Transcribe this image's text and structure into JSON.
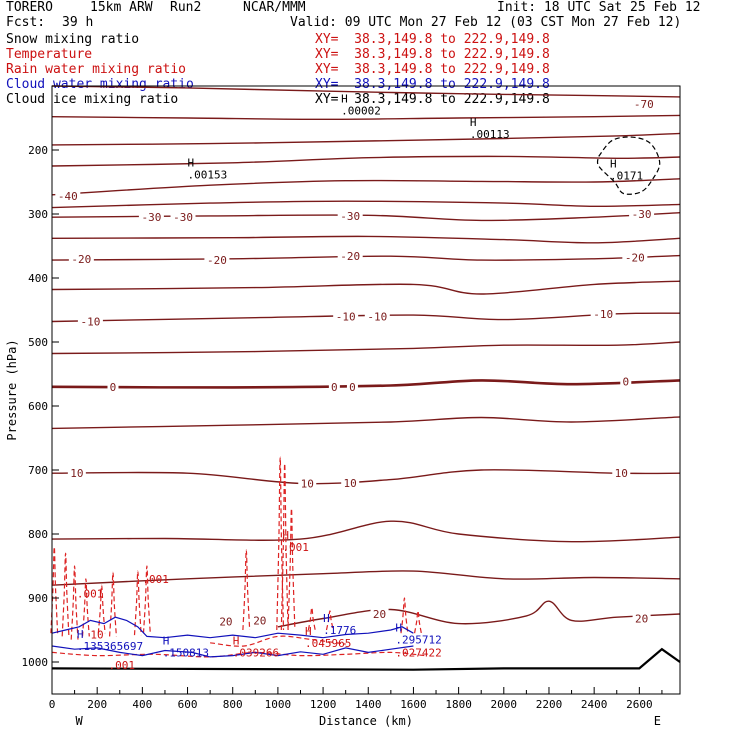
{
  "header": {
    "model": "TORERO",
    "resolution": "15km ARW",
    "run": "Run2",
    "center": "NCAR/MMM",
    "init": "Init: 18 UTC Sat 25 Feb 12",
    "fcst_label": "Fcst:",
    "fcst_value": "39 h",
    "valid": "Valid: 09 UTC Mon 27 Feb 12 (03 CST Mon 27 Feb 12)",
    "fields": [
      {
        "name": "Snow mixing ratio",
        "xy": "XY=  38.3,149.8 to 222.9,149.8",
        "color": "#000000"
      },
      {
        "name": "Temperature",
        "xy": "XY=  38.3,149.8 to 222.9,149.8",
        "color": "#cc1111"
      },
      {
        "name": "Rain water mixing ratio",
        "xy": "XY=  38.3,149.8 to 222.9,149.8",
        "color": "#cc1111"
      },
      {
        "name": "Cloud water mixing ratio",
        "xy": "XY=  38.3,149.8 to 222.9,149.8",
        "color": "#1111bb"
      },
      {
        "name": "Cloud ice mixing ratio",
        "xy": "XY=  38.3,149.8 to 222.9,149.8",
        "color": "#000000"
      }
    ]
  },
  "chart_data": {
    "type": "line",
    "subtype": "vertical cross-section contour plot",
    "xlabel": "Distance (km)",
    "ylabel": "Pressure (hPa)",
    "xlim": [
      0,
      2780
    ],
    "ylim": [
      1050,
      100
    ],
    "x_ticks": [
      0,
      200,
      400,
      600,
      800,
      1000,
      1200,
      1400,
      1600,
      1800,
      2000,
      2200,
      2400,
      2600
    ],
    "y_ticks": [
      200,
      300,
      400,
      500,
      600,
      700,
      800,
      900,
      1000
    ],
    "left_end_label": "W",
    "right_end_label": "E",
    "temperature_labels": [
      {
        "text": "-70",
        "x": 2620,
        "p": 128
      },
      {
        "text": "-40",
        "x": 70,
        "p": 272
      },
      {
        "text": "-30",
        "x": 440,
        "p": 305
      },
      {
        "text": "-30",
        "x": 580,
        "p": 305
      },
      {
        "text": "-30",
        "x": 1320,
        "p": 303
      },
      {
        "text": "-30",
        "x": 2610,
        "p": 300
      },
      {
        "text": "-20",
        "x": 130,
        "p": 370
      },
      {
        "text": "-20",
        "x": 730,
        "p": 372
      },
      {
        "text": "-20",
        "x": 1320,
        "p": 366
      },
      {
        "text": "-20",
        "x": 2580,
        "p": 368
      },
      {
        "text": "-10",
        "x": 170,
        "p": 468
      },
      {
        "text": "-10",
        "x": 1300,
        "p": 460
      },
      {
        "text": "-10",
        "x": 1440,
        "p": 460
      },
      {
        "text": "-10",
        "x": 2440,
        "p": 456
      },
      {
        "text": "0",
        "x": 270,
        "p": 570
      },
      {
        "text": "0",
        "x": 1250,
        "p": 570
      },
      {
        "text": "0",
        "x": 1330,
        "p": 570
      },
      {
        "text": "0",
        "x": 2540,
        "p": 562
      },
      {
        "text": "10",
        "x": 110,
        "p": 705
      },
      {
        "text": "10",
        "x": 1130,
        "p": 721
      },
      {
        "text": "10",
        "x": 1320,
        "p": 720
      },
      {
        "text": "10",
        "x": 2520,
        "p": 705
      },
      {
        "text": "20",
        "x": 770,
        "p": 937
      },
      {
        "text": "20",
        "x": 920,
        "p": 935
      },
      {
        "text": "20",
        "x": 1450,
        "p": 925
      },
      {
        "text": "20",
        "x": 2610,
        "p": 932
      }
    ],
    "temperature_contours": [
      {
        "level": -70,
        "points": [
          [
            0,
            100
          ],
          [
            600,
            103
          ],
          [
            1200,
            108
          ],
          [
            1800,
            112
          ],
          [
            2400,
            115
          ],
          [
            2780,
            117
          ]
        ]
      },
      {
        "level": -60,
        "points": [
          [
            0,
            148
          ],
          [
            600,
            150
          ],
          [
            1200,
            152
          ],
          [
            1800,
            150
          ],
          [
            2400,
            148
          ],
          [
            2780,
            146
          ]
        ]
      },
      {
        "level": -50,
        "points": [
          [
            0,
            192
          ],
          [
            700,
            190
          ],
          [
            1400,
            186
          ],
          [
            2000,
            182
          ],
          [
            2500,
            178
          ],
          [
            2780,
            174
          ]
        ]
      },
      {
        "level": -45,
        "points": [
          [
            0,
            225
          ],
          [
            800,
            220
          ],
          [
            1400,
            212
          ],
          [
            2000,
            210
          ],
          [
            2500,
            213
          ],
          [
            2780,
            211
          ]
        ]
      },
      {
        "level": -40,
        "points": [
          [
            0,
            270
          ],
          [
            700,
            255
          ],
          [
            1300,
            248
          ],
          [
            1900,
            249
          ],
          [
            2400,
            250
          ],
          [
            2780,
            245
          ]
        ]
      },
      {
        "level": -35,
        "points": [
          [
            0,
            290
          ],
          [
            700,
            283
          ],
          [
            1300,
            280
          ],
          [
            2000,
            283
          ],
          [
            2400,
            288
          ],
          [
            2780,
            285
          ]
        ]
      },
      {
        "level": -30,
        "points": [
          [
            0,
            305
          ],
          [
            700,
            303
          ],
          [
            1400,
            302
          ],
          [
            1900,
            310
          ],
          [
            2400,
            305
          ],
          [
            2780,
            298
          ]
        ]
      },
      {
        "level": -25,
        "points": [
          [
            0,
            338
          ],
          [
            800,
            337
          ],
          [
            1400,
            335
          ],
          [
            2000,
            340
          ],
          [
            2400,
            345
          ],
          [
            2780,
            338
          ]
        ]
      },
      {
        "level": -20,
        "points": [
          [
            0,
            372
          ],
          [
            800,
            370
          ],
          [
            1500,
            366
          ],
          [
            1900,
            372
          ],
          [
            2400,
            370
          ],
          [
            2780,
            365
          ]
        ]
      },
      {
        "level": -15,
        "points": [
          [
            0,
            418
          ],
          [
            900,
            415
          ],
          [
            1600,
            410
          ],
          [
            1900,
            425
          ],
          [
            2400,
            410
          ],
          [
            2780,
            405
          ]
        ]
      },
      {
        "level": -10,
        "points": [
          [
            0,
            468
          ],
          [
            900,
            462
          ],
          [
            1600,
            458
          ],
          [
            2000,
            465
          ],
          [
            2500,
            456
          ],
          [
            2780,
            455
          ]
        ]
      },
      {
        "level": -5,
        "points": [
          [
            0,
            518
          ],
          [
            900,
            515
          ],
          [
            1600,
            510
          ],
          [
            2000,
            505
          ],
          [
            2500,
            505
          ],
          [
            2780,
            500
          ]
        ]
      },
      {
        "level": 0,
        "bold": true,
        "points": [
          [
            0,
            570
          ],
          [
            800,
            571
          ],
          [
            1500,
            568
          ],
          [
            1900,
            560
          ],
          [
            2300,
            566
          ],
          [
            2780,
            560
          ]
        ]
      },
      {
        "level": 5,
        "points": [
          [
            0,
            635
          ],
          [
            800,
            630
          ],
          [
            1500,
            625
          ],
          [
            1900,
            618
          ],
          [
            2300,
            625
          ],
          [
            2780,
            617
          ]
        ]
      },
      {
        "level": 10,
        "points": [
          [
            0,
            705
          ],
          [
            600,
            705
          ],
          [
            1100,
            721
          ],
          [
            1500,
            715
          ],
          [
            1900,
            700
          ],
          [
            2500,
            705
          ],
          [
            2780,
            705
          ]
        ]
      },
      {
        "level": 15,
        "points": [
          [
            0,
            808
          ],
          [
            500,
            807
          ],
          [
            1100,
            808
          ],
          [
            1500,
            780
          ],
          [
            1800,
            800
          ],
          [
            2300,
            812
          ],
          [
            2780,
            805
          ]
        ]
      },
      {
        "level": 18,
        "points": [
          [
            0,
            880
          ],
          [
            600,
            870
          ],
          [
            1200,
            862
          ],
          [
            1600,
            858
          ],
          [
            2000,
            870
          ],
          [
            2400,
            868
          ],
          [
            2780,
            870
          ]
        ]
      },
      {
        "level": 20,
        "points": [
          [
            1000,
            945
          ],
          [
            1200,
            932
          ],
          [
            1500,
            918
          ],
          [
            1800,
            940
          ],
          [
            2100,
            928
          ],
          [
            2200,
            905
          ],
          [
            2300,
            935
          ],
          [
            2500,
            930
          ],
          [
            2780,
            925
          ]
        ]
      }
    ],
    "surface_profile": [
      [
        0,
        1010
      ],
      [
        1600,
        1012
      ],
      [
        2000,
        1010
      ],
      [
        2600,
        1010
      ],
      [
        2700,
        980
      ],
      [
        2780,
        1000
      ]
    ],
    "extrema": [
      {
        "text": "H",
        "value": ".00002",
        "x": 1280,
        "p": 138,
        "color": "#000000"
      },
      {
        "text": "H",
        "value": ".00113",
        "x": 1850,
        "p": 175,
        "color": "#000000"
      },
      {
        "text": "H",
        "value": ".00153",
        "x": 600,
        "p": 238,
        "color": "#000000"
      },
      {
        "text": "H",
        "value": ".0171",
        "x": 2470,
        "p": 240,
        "color": "#000000"
      },
      {
        "text": "H",
        "value": ".001",
        "x": 1020,
        "p": 820,
        "color": "#cc1111"
      },
      {
        "text": "",
        "value": ".001",
        "x": 400,
        "p": 870,
        "color": "#cc1111"
      },
      {
        "text": "",
        "value": ".001",
        "x": 110,
        "p": 893,
        "color": "#cc1111"
      },
      {
        "text": "H",
        "value": ".135365697",
        "x": 110,
        "p": 975,
        "color": "#1111bb"
      },
      {
        "text": "H",
        "value": ".150813",
        "x": 490,
        "p": 985,
        "color": "#1111bb"
      },
      {
        "text": "H",
        "value": ".039266",
        "x": 800,
        "p": 985,
        "color": "#cc1111"
      },
      {
        "text": "H",
        "value": ".045965",
        "x": 1120,
        "p": 970,
        "color": "#cc1111"
      },
      {
        "text": "H",
        "value": ".1776",
        "x": 1200,
        "p": 950,
        "color": "#1111bb"
      },
      {
        "text": "H",
        "value": ".295712",
        "x": 1520,
        "p": 965,
        "color": "#1111bb"
      },
      {
        "text": "",
        "value": ".027422",
        "x": 1520,
        "p": 985,
        "color": "#cc1111"
      },
      {
        "text": "",
        "value": ".001",
        "x": 250,
        "p": 1005,
        "color": "#cc1111"
      },
      {
        "text": "",
        "value": "10",
        "x": 170,
        "p": 957,
        "color": "#cc1111"
      }
    ]
  }
}
